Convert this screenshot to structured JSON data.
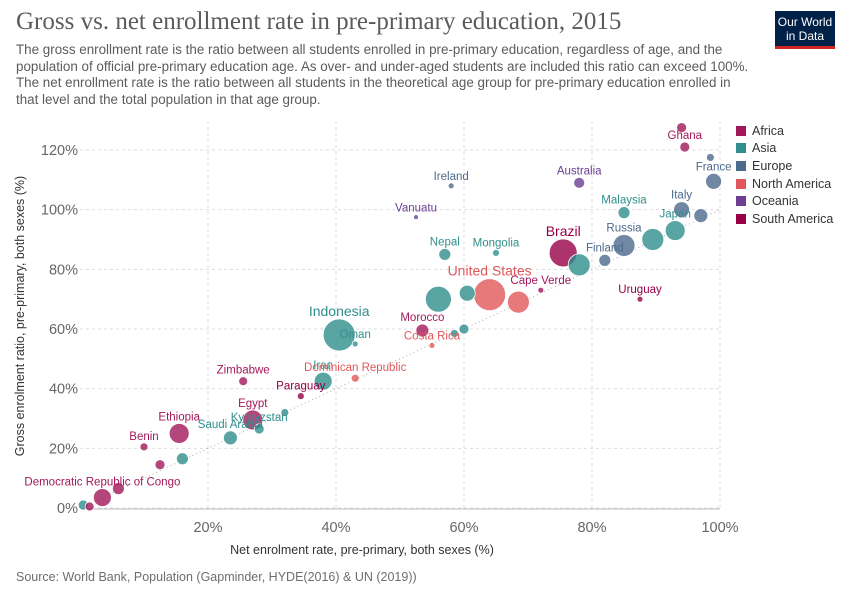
{
  "header": {
    "title": "Gross vs. net enrollment rate in pre-primary education, 2015",
    "subtitle": "The gross enrollment rate is the ratio between all students enrolled in pre-primary education, regardless of age, and the population of official pre-primary education age. As over- and under-aged students are included this ratio can exceed 100%. The net enrollment rate is the ratio between all students in the theoretical age group for pre-primary education enrolled in that level and the total population in that age group.",
    "logo_line1": "Our World",
    "logo_line2": "in Data"
  },
  "footer": {
    "source": "Source: World Bank, Population (Gapminder, HYDE(2016) & UN (2019))"
  },
  "colors": {
    "Africa": "#a2185a",
    "Asia": "#2f8f8c",
    "Europe": "#4c6a8c",
    "North America": "#e15759",
    "Oceania": "#6d3e91",
    "South America": "#970046"
  },
  "chart_data": {
    "type": "scatter",
    "xlabel": "Net enrolment rate, pre-primary, both sexes (%)",
    "ylabel": "Gross enrolment ratio, pre-primary, both sexes (%)",
    "xlim": [
      0,
      100
    ],
    "ylim": [
      0,
      125
    ],
    "xticks": [
      "20%",
      "40%",
      "60%",
      "80%",
      "100%"
    ],
    "yticks": [
      "0%",
      "20%",
      "40%",
      "60%",
      "80%",
      "100%",
      "120%"
    ],
    "grid": true,
    "legend_position": "right",
    "legend": [
      "Africa",
      "Asia",
      "Europe",
      "North America",
      "Oceania",
      "South America"
    ],
    "points": [
      {
        "label": "Ghana",
        "region": "Africa",
        "x": 94.5,
        "y": 121,
        "size": 5
      },
      {
        "label": "",
        "region": "Africa",
        "x": 94,
        "y": 127.5,
        "size": 5
      },
      {
        "label": "France",
        "region": "Europe",
        "x": 99,
        "y": 109.5,
        "size": 8
      },
      {
        "label": "",
        "region": "Europe",
        "x": 98.5,
        "y": 117.5,
        "size": 4
      },
      {
        "label": "Australia",
        "region": "Oceania",
        "x": 78,
        "y": 109,
        "size": 5.5
      },
      {
        "label": "Ireland",
        "region": "Europe",
        "x": 58,
        "y": 108,
        "size": 3
      },
      {
        "label": "Malaysia",
        "region": "Asia",
        "x": 85,
        "y": 99,
        "size": 6
      },
      {
        "label": "Italy",
        "region": "Europe",
        "x": 94,
        "y": 100,
        "size": 8
      },
      {
        "label": "",
        "region": "Europe",
        "x": 97,
        "y": 98,
        "size": 7
      },
      {
        "label": "Vanuatu",
        "region": "Oceania",
        "x": 52.5,
        "y": 97.5,
        "size": 2.5
      },
      {
        "label": "Japan",
        "region": "Asia",
        "x": 93,
        "y": 93,
        "size": 10
      },
      {
        "label": "",
        "region": "Asia",
        "x": 89.5,
        "y": 90,
        "size": 11
      },
      {
        "label": "Brazil",
        "region": "South America",
        "x": 75.5,
        "y": 85.5,
        "size": 14
      },
      {
        "label": "Nepal",
        "region": "Asia",
        "x": 57,
        "y": 85,
        "size": 6
      },
      {
        "label": "Mongolia",
        "region": "Asia",
        "x": 65,
        "y": 85.5,
        "size": 3.5
      },
      {
        "label": "Russia",
        "region": "Europe",
        "x": 85,
        "y": 88,
        "size": 11
      },
      {
        "label": "Finland",
        "region": "Europe",
        "x": 82,
        "y": 83,
        "size": 6
      },
      {
        "label": "",
        "region": "Asia",
        "x": 78,
        "y": 81.5,
        "size": 11
      },
      {
        "label": "United States",
        "region": "North America",
        "x": 64,
        "y": 71.5,
        "size": 16
      },
      {
        "label": "Cape Verde",
        "region": "Africa",
        "x": 72,
        "y": 73,
        "size": 3
      },
      {
        "label": "",
        "region": "Asia",
        "x": 56,
        "y": 70,
        "size": 13
      },
      {
        "label": "",
        "region": "Asia",
        "x": 60.5,
        "y": 72,
        "size": 8
      },
      {
        "label": "",
        "region": "North America",
        "x": 68.5,
        "y": 69,
        "size": 11
      },
      {
        "label": "Uruguay",
        "region": "South America",
        "x": 87.5,
        "y": 70,
        "size": 3
      },
      {
        "label": "Indonesia",
        "region": "Asia",
        "x": 40.5,
        "y": 58,
        "size": 16
      },
      {
        "label": "Oman",
        "region": "Asia",
        "x": 43,
        "y": 55,
        "size": 3
      },
      {
        "label": "Morocco",
        "region": "Africa",
        "x": 53.5,
        "y": 59.5,
        "size": 6.5
      },
      {
        "label": "Costa Rica",
        "region": "North America",
        "x": 55,
        "y": 54.5,
        "size": 3
      },
      {
        "label": "",
        "region": "Asia",
        "x": 60,
        "y": 60,
        "size": 5
      },
      {
        "label": "",
        "region": "Asia",
        "x": 58.5,
        "y": 58.5,
        "size": 4
      },
      {
        "label": "Iran",
        "region": "Asia",
        "x": 38,
        "y": 42.5,
        "size": 9
      },
      {
        "label": "Dominican Republic",
        "region": "North America",
        "x": 43,
        "y": 43.5,
        "size": 4
      },
      {
        "label": "Paraguay",
        "region": "South America",
        "x": 34.5,
        "y": 37.5,
        "size": 3.5
      },
      {
        "label": "Zimbabwe",
        "region": "Africa",
        "x": 25.5,
        "y": 42.5,
        "size": 4.5
      },
      {
        "label": "Egypt",
        "region": "Africa",
        "x": 27,
        "y": 29.5,
        "size": 10
      },
      {
        "label": "Kyrgyzstan",
        "region": "Asia",
        "x": 28,
        "y": 26.5,
        "size": 5
      },
      {
        "label": "",
        "region": "Asia",
        "x": 32,
        "y": 32,
        "size": 4
      },
      {
        "label": "Ethiopia",
        "region": "Africa",
        "x": 15.5,
        "y": 25,
        "size": 10
      },
      {
        "label": "Benin",
        "region": "Africa",
        "x": 10,
        "y": 20.5,
        "size": 4
      },
      {
        "label": "Saudi Arabia",
        "region": "Asia",
        "x": 23.5,
        "y": 23.5,
        "size": 7
      },
      {
        "label": "",
        "region": "Asia",
        "x": 16,
        "y": 16.5,
        "size": 6
      },
      {
        "label": "",
        "region": "Africa",
        "x": 12.5,
        "y": 14.5,
        "size": 5
      },
      {
        "label": "Democratic Republic of Congo",
        "region": "Africa",
        "x": 3.5,
        "y": 3.5,
        "size": 9
      },
      {
        "label": "",
        "region": "Africa",
        "x": 6,
        "y": 6.5,
        "size": 6
      },
      {
        "label": "",
        "region": "Africa",
        "x": 1.5,
        "y": 0.5,
        "size": 4.5
      },
      {
        "label": "",
        "region": "Asia",
        "x": 0.5,
        "y": 1,
        "size": 5
      }
    ]
  }
}
